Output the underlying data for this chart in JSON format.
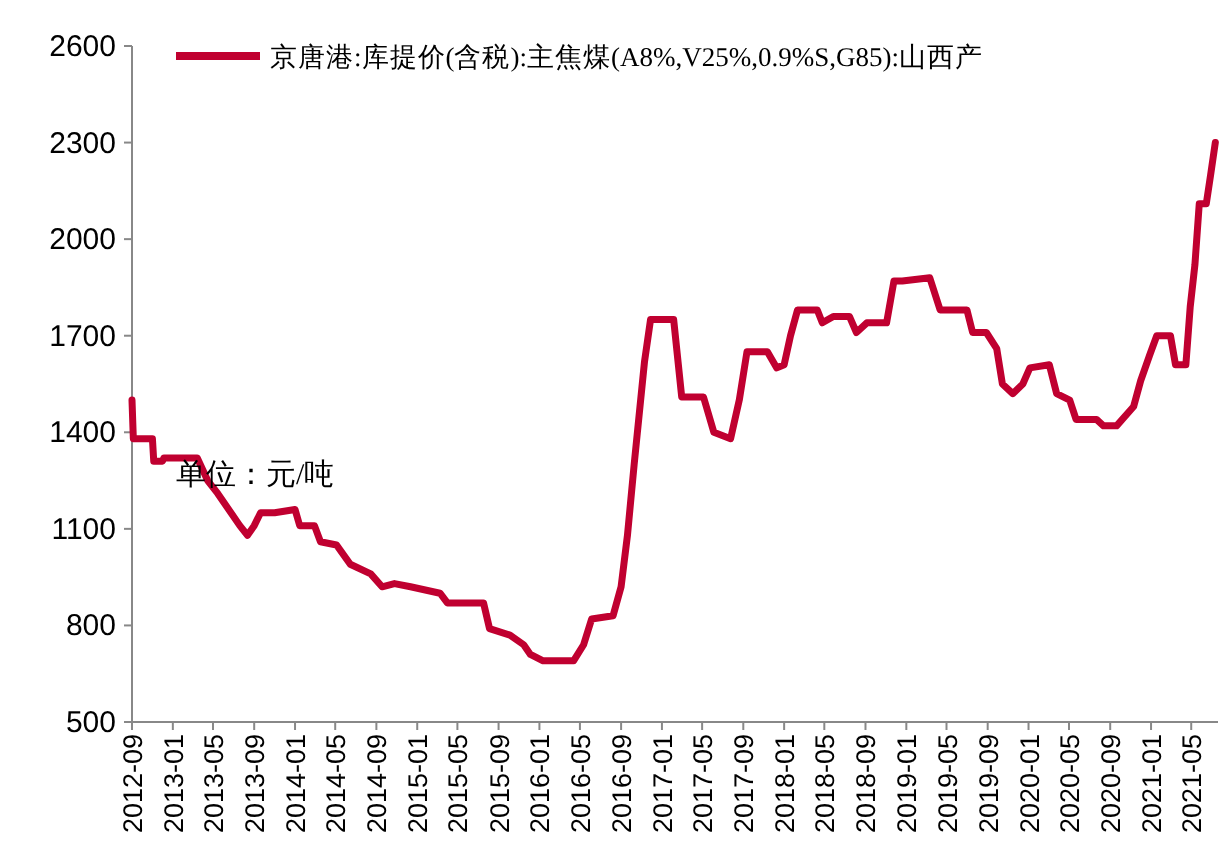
{
  "chart_data": {
    "type": "line",
    "annotations": [
      "单位：元/吨"
    ],
    "legend": "top",
    "xlim": [
      "2012-09",
      "2021-07-20"
    ],
    "ylim": [
      500,
      2600
    ],
    "yticks": [
      500,
      800,
      1100,
      1400,
      1700,
      2000,
      2300,
      2600
    ],
    "xticks": [
      "2012-09",
      "2013-01",
      "2013-05",
      "2013-09",
      "2014-01",
      "2014-05",
      "2014-09",
      "2015-01",
      "2015-05",
      "2015-09",
      "2016-01",
      "2016-05",
      "2016-09",
      "2017-01",
      "2017-05",
      "2017-09",
      "2018-01",
      "2018-05",
      "2018-09",
      "2019-01",
      "2019-05",
      "2019-09",
      "2020-01",
      "2020-05",
      "2020-09",
      "2021-01",
      "2021-05"
    ],
    "x": [
      "2012-09-01",
      "2012-09-05",
      "2012-11-01",
      "2012-11-05",
      "2012-12-01",
      "2012-12-05",
      "2013-03-15",
      "2013-04-15",
      "2013-05-15",
      "2013-07-20",
      "2013-08-12",
      "2013-09-01",
      "2013-09-20",
      "2013-11-01",
      "2014-01-01",
      "2014-01-15",
      "2014-02-28",
      "2014-03-18",
      "2014-05-05",
      "2014-06-15",
      "2014-08-15",
      "2014-09-18",
      "2014-10-25",
      "2014-12-12",
      "2015-03-10",
      "2015-04-01",
      "2015-07-18",
      "2015-08-05",
      "2015-10-05",
      "2015-11-15",
      "2015-12-05",
      "2016-01-12",
      "2016-04-12",
      "2016-05-12",
      "2016-06-05",
      "2016-08-08",
      "2016-09-01",
      "2016-09-20",
      "2016-10-10",
      "2016-11-10",
      "2016-11-28",
      "2017-02-05",
      "2017-03-01",
      "2017-05-05",
      "2017-06-05",
      "2017-07-25",
      "2017-08-20",
      "2017-09-12",
      "2017-11-12",
      "2017-12-10",
      "2018-01-01",
      "2018-01-20",
      "2018-02-10",
      "2018-04-10",
      "2018-04-25",
      "2018-05-28",
      "2018-07-15",
      "2018-08-05",
      "2018-09-05",
      "2018-11-03",
      "2018-11-25",
      "2018-12-20",
      "2019-03-12",
      "2019-04-12",
      "2019-07-01",
      "2019-07-18",
      "2019-08-28",
      "2019-09-28",
      "2019-10-15",
      "2019-11-15",
      "2019-12-15",
      "2020-01-05",
      "2020-03-03",
      "2020-03-25",
      "2020-05-03",
      "2020-05-22",
      "2020-07-22",
      "2020-08-12",
      "2020-09-20",
      "2020-11-10",
      "2020-12-01",
      "2020-12-28",
      "2021-01-18",
      "2021-02-28",
      "2021-03-15",
      "2021-04-15",
      "2021-04-28",
      "2021-05-12",
      "2021-05-25",
      "2021-06-15",
      "2021-06-28",
      "2021-07-12"
    ],
    "series": [
      {
        "name": "京唐港:库提价(含税):主焦煤(A8%,V25%,0.9%S,G85):山西产",
        "color": "#c00030",
        "values": [
          1500,
          1380,
          1380,
          1310,
          1310,
          1320,
          1320,
          1250,
          1210,
          1110,
          1080,
          1110,
          1150,
          1150,
          1160,
          1110,
          1110,
          1060,
          1050,
          990,
          960,
          920,
          930,
          920,
          900,
          870,
          870,
          790,
          770,
          740,
          710,
          690,
          690,
          740,
          820,
          830,
          920,
          1080,
          1300,
          1620,
          1750,
          1750,
          1510,
          1510,
          1400,
          1380,
          1500,
          1650,
          1650,
          1600,
          1610,
          1700,
          1780,
          1780,
          1740,
          1760,
          1760,
          1710,
          1740,
          1740,
          1870,
          1870,
          1880,
          1780,
          1780,
          1710,
          1710,
          1660,
          1550,
          1520,
          1550,
          1600,
          1610,
          1520,
          1500,
          1440,
          1440,
          1420,
          1420,
          1480,
          1560,
          1640,
          1700,
          1700,
          1610,
          1610,
          1790,
          1920,
          2110,
          2110,
          2200,
          2300
        ]
      }
    ]
  }
}
